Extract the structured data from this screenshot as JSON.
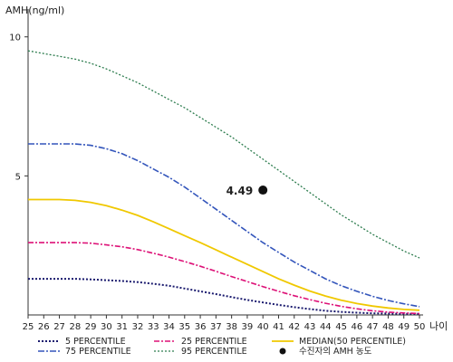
{
  "chart_data": {
    "type": "line",
    "ylabel": "AMH(ng/ml)",
    "xlabel": "나이",
    "x": [
      25,
      26,
      27,
      28,
      29,
      30,
      31,
      32,
      33,
      34,
      35,
      36,
      37,
      38,
      39,
      40,
      41,
      42,
      43,
      44,
      45,
      46,
      47,
      48,
      49,
      50
    ],
    "xlim": [
      25,
      50
    ],
    "ylim": [
      0,
      11
    ],
    "y_ticks": [
      5,
      10
    ],
    "grid": false,
    "legend_position": "bottom",
    "series": [
      {
        "name": "5 PERCENTILE",
        "color": "#1a1a6e",
        "dash": "2,2",
        "width": 2,
        "values": [
          1.3,
          1.3,
          1.3,
          1.3,
          1.28,
          1.25,
          1.22,
          1.18,
          1.12,
          1.05,
          0.95,
          0.85,
          0.75,
          0.64,
          0.54,
          0.45,
          0.36,
          0.28,
          0.21,
          0.15,
          0.11,
          0.08,
          0.06,
          0.05,
          0.04,
          0.04
        ]
      },
      {
        "name": "75 PERCENTILE",
        "color": "#3355bb",
        "dash": "7,2,2,2",
        "width": 1.6,
        "values": [
          6.15,
          6.15,
          6.15,
          6.15,
          6.1,
          5.98,
          5.8,
          5.55,
          5.25,
          4.95,
          4.6,
          4.2,
          3.8,
          3.4,
          3.0,
          2.6,
          2.25,
          1.9,
          1.6,
          1.3,
          1.05,
          0.85,
          0.67,
          0.52,
          0.4,
          0.3
        ]
      },
      {
        "name": "25 PERCENTILE",
        "color": "#dd1177",
        "dash": "6,2,2,2",
        "width": 1.6,
        "values": [
          2.6,
          2.6,
          2.6,
          2.6,
          2.58,
          2.52,
          2.45,
          2.35,
          2.22,
          2.08,
          1.92,
          1.75,
          1.57,
          1.38,
          1.2,
          1.02,
          0.85,
          0.69,
          0.55,
          0.42,
          0.31,
          0.22,
          0.15,
          0.1,
          0.07,
          0.05
        ]
      },
      {
        "name": "95 PERCENTILE",
        "color": "#2e7d4f",
        "dash": "2,2",
        "width": 1.3,
        "values": [
          9.5,
          9.4,
          9.3,
          9.2,
          9.05,
          8.85,
          8.6,
          8.35,
          8.05,
          7.75,
          7.45,
          7.1,
          6.75,
          6.4,
          6.0,
          5.6,
          5.2,
          4.8,
          4.4,
          4.0,
          3.6,
          3.25,
          2.9,
          2.6,
          2.3,
          2.05
        ]
      },
      {
        "name": "MEDIAN(50 PERCENTILE)",
        "color": "#f0c800",
        "dash": "",
        "width": 1.8,
        "values": [
          4.15,
          4.15,
          4.15,
          4.12,
          4.05,
          3.93,
          3.77,
          3.58,
          3.35,
          3.1,
          2.85,
          2.6,
          2.34,
          2.08,
          1.82,
          1.56,
          1.3,
          1.07,
          0.86,
          0.68,
          0.53,
          0.41,
          0.32,
          0.25,
          0.2,
          0.17
        ]
      }
    ],
    "patient": {
      "name": "수진자의 AMH 농도",
      "x": 40,
      "y": 4.49,
      "label": "4.49"
    }
  }
}
